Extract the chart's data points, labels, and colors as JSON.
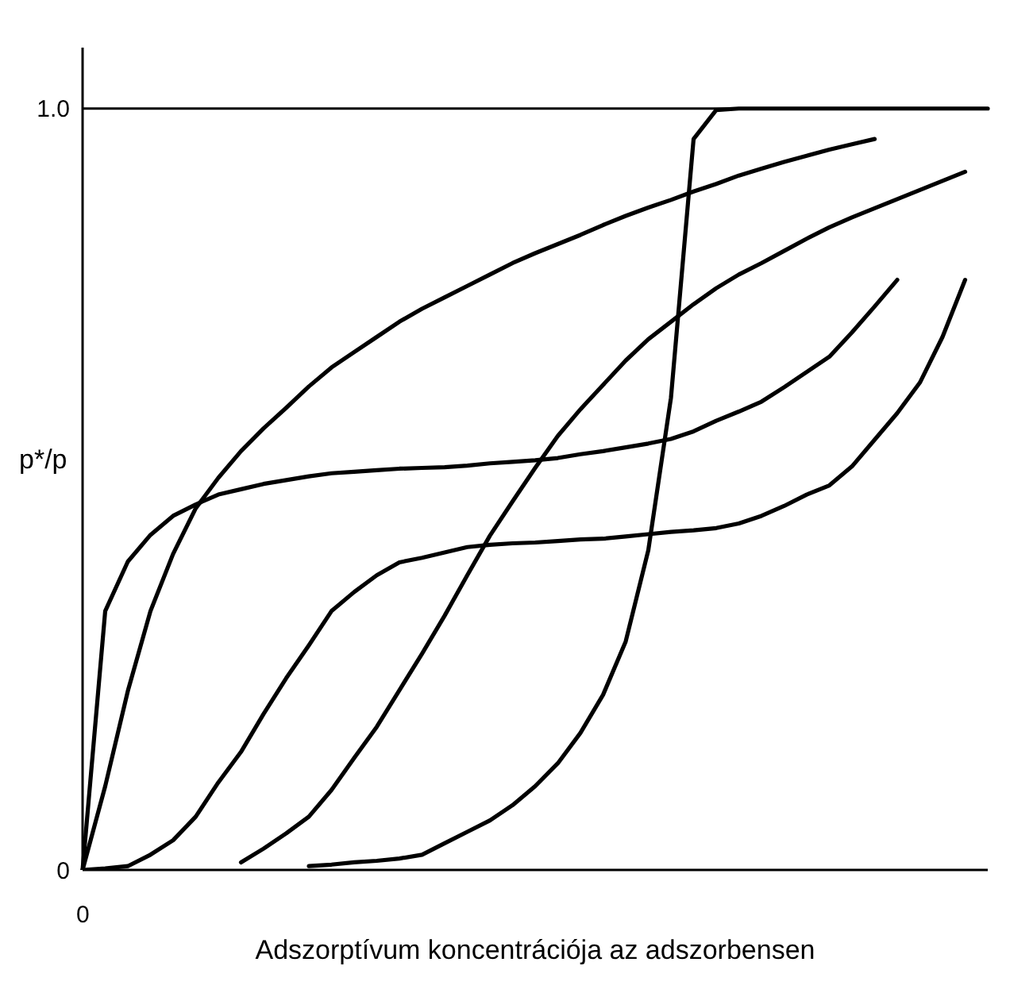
{
  "chart_data": {
    "type": "line",
    "xlabel": "Adszorptívum koncentrációja az adszorbensen",
    "ylabel": "p*/p",
    "annotations": [
      "0"
    ],
    "ylim": [
      0,
      1.08
    ],
    "yticks": [
      0,
      {
        "value": 1,
        "label": "1.0"
      }
    ],
    "grid": false,
    "legend": false,
    "marker": "none",
    "line_style": "solid",
    "categories": [
      null,
      null,
      null,
      null,
      null,
      null,
      null,
      null,
      null,
      null,
      null,
      null,
      null,
      null,
      null,
      null,
      null,
      null,
      null,
      null,
      null,
      null,
      null,
      null,
      null,
      null,
      null,
      null,
      null,
      null,
      null,
      null,
      null,
      null,
      null,
      null,
      null,
      null,
      null,
      null,
      null
    ],
    "ref_lines": [
      {
        "axis": "y",
        "value": 1,
        "color": "#000000"
      }
    ],
    "series": [
      {
        "color": "#000000",
        "values": [
          0,
          0.11,
          0.235,
          0.34,
          0.415,
          0.475,
          0.515,
          0.55,
          0.58,
          0.607,
          0.635,
          0.66,
          0.68,
          0.7,
          0.72,
          0.737,
          0.752,
          0.767,
          0.782,
          0.797,
          0.81,
          0.822,
          0.834,
          0.847,
          0.859,
          0.87,
          0.88,
          0.891,
          0.901,
          0.912,
          0.921,
          0.93,
          0.938,
          0.946,
          0.953,
          0.96,
          null,
          null,
          null,
          null,
          null
        ]
      },
      {
        "color": "#000000",
        "values": [
          0,
          0.34,
          0.405,
          0.44,
          0.465,
          0.48,
          0.493,
          0.5,
          0.507,
          0.512,
          0.517,
          0.521,
          0.523,
          0.525,
          0.527,
          0.528,
          0.529,
          0.531,
          0.534,
          0.536,
          0.538,
          0.541,
          0.546,
          0.55,
          0.555,
          0.56,
          0.566,
          0.576,
          0.59,
          0.602,
          0.615,
          0.634,
          0.654,
          0.674,
          0.706,
          0.74,
          0.775,
          null,
          null,
          null,
          null
        ]
      },
      {
        "color": "#000000",
        "values": [
          0,
          0.002,
          0.005,
          0.02,
          0.039,
          0.07,
          0.115,
          0.155,
          0.205,
          0.252,
          0.295,
          0.34,
          0.365,
          0.387,
          0.404,
          0.41,
          0.417,
          0.424,
          0.427,
          0.429,
          0.43,
          0.432,
          0.434,
          0.435,
          0.438,
          0.441,
          0.444,
          0.446,
          0.449,
          0.455,
          0.465,
          0.478,
          0.493,
          0.505,
          0.53,
          0.565,
          0.6,
          0.64,
          0.7,
          0.775,
          null
        ]
      },
      {
        "color": "#000000",
        "values": [
          null,
          null,
          null,
          null,
          null,
          null,
          null,
          0.01,
          0.028,
          0.048,
          0.07,
          0.105,
          0.147,
          0.188,
          0.236,
          0.284,
          0.334,
          0.387,
          0.439,
          0.484,
          0.528,
          0.57,
          0.605,
          0.637,
          0.669,
          0.697,
          0.72,
          0.743,
          0.764,
          0.782,
          0.797,
          0.813,
          0.829,
          0.844,
          0.857,
          0.869,
          0.881,
          0.893,
          0.905,
          0.917,
          null
        ]
      },
      {
        "color": "#000000",
        "values": [
          null,
          null,
          null,
          null,
          null,
          null,
          null,
          null,
          null,
          null,
          0.005,
          0.007,
          0.01,
          0.012,
          0.015,
          0.02,
          0.035,
          0.05,
          0.065,
          0.085,
          0.11,
          0.14,
          0.18,
          0.23,
          0.3,
          0.42,
          0.62,
          0.96,
          0.998,
          1,
          1,
          1,
          1,
          1,
          1,
          1,
          1,
          1,
          1,
          1,
          1
        ]
      }
    ]
  }
}
